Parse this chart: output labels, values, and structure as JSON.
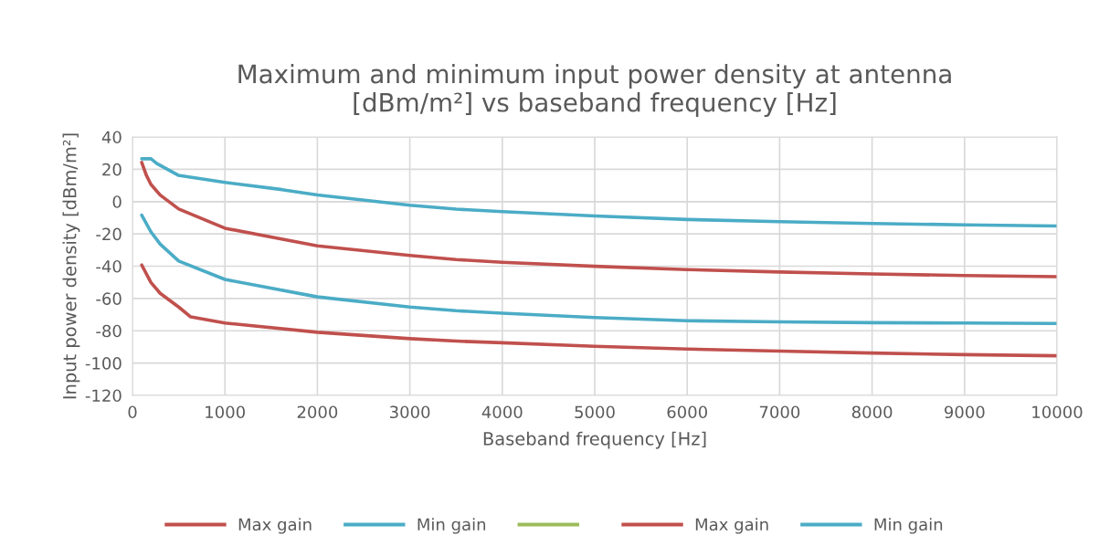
{
  "chart_data": {
    "type": "line",
    "title": "Maximum and minimum input power density at antenna\n[dBm/m²] vs baseband frequency [Hz]",
    "xlabel": "Baseband frequency [Hz]",
    "ylabel": "Input power density [dBm/m²]",
    "xlim": [
      0,
      10000
    ],
    "xticks": [
      0,
      1000,
      2000,
      3000,
      4000,
      5000,
      6000,
      7000,
      8000,
      9000,
      10000
    ],
    "ylim": [
      -120,
      40
    ],
    "yticks": [
      -120,
      -100,
      -80,
      -60,
      -40,
      -20,
      0,
      20,
      40
    ],
    "grid": true,
    "legend": "bottom",
    "marker": "none",
    "line_style": "solid",
    "series": [
      {
        "name": "Max gain",
        "color": "#c0504d",
        "x": [
          100,
          150,
          200,
          300,
          500,
          1000,
          2000,
          3000,
          3500,
          4000,
          5000,
          6000,
          7000,
          8000,
          9000,
          10000
        ],
        "values": [
          24.2,
          16.3,
          10.6,
          4,
          -4.6,
          -16.5,
          -27.4,
          -33.4,
          -35.9,
          -37.6,
          -40.1,
          -42.1,
          -43.6,
          -44.8,
          -45.8,
          -46.5
        ]
      },
      {
        "name": "Min gain",
        "color": "#4bacc6",
        "x": [
          100,
          200,
          264,
          495,
          1000,
          1617,
          2000,
          3000,
          3500,
          4000,
          5000,
          6000,
          7000,
          8000,
          9000,
          10000
        ],
        "values": [
          26.5,
          26.5,
          23.5,
          16.3,
          11.9,
          7.4,
          4.1,
          -2.3,
          -4.7,
          -6.2,
          -8.9,
          -11.1,
          -12.4,
          -13.6,
          -14.4,
          -15.1
        ]
      },
      {
        "color": "#9bbb59"
      },
      {
        "name": "Max gain",
        "color": "#c0504d",
        "x": [
          100,
          200,
          300,
          500,
          630,
          1000,
          2000,
          3000,
          3500,
          4000,
          5000,
          6000,
          7000,
          8000,
          9000,
          10000
        ],
        "values": [
          -39.3,
          -50.1,
          -56.8,
          -65.3,
          -71.4,
          -75.2,
          -80.9,
          -84.9,
          -86.4,
          -87.4,
          -89.6,
          -91.3,
          -92.6,
          -93.8,
          -94.8,
          -95.5
        ]
      },
      {
        "name": "Min gain",
        "color": "#4bacc6",
        "x": [
          100,
          200,
          300,
          500,
          1000,
          2000,
          3000,
          3500,
          4000,
          5000,
          6000,
          7000,
          8000,
          9000,
          10000
        ],
        "values": [
          -8.4,
          -18.8,
          -26.4,
          -36.8,
          -48.2,
          -59,
          -65.3,
          -67.6,
          -69.1,
          -71.8,
          -73.8,
          -74.5,
          -75,
          -75.2,
          -75.5
        ]
      }
    ]
  }
}
